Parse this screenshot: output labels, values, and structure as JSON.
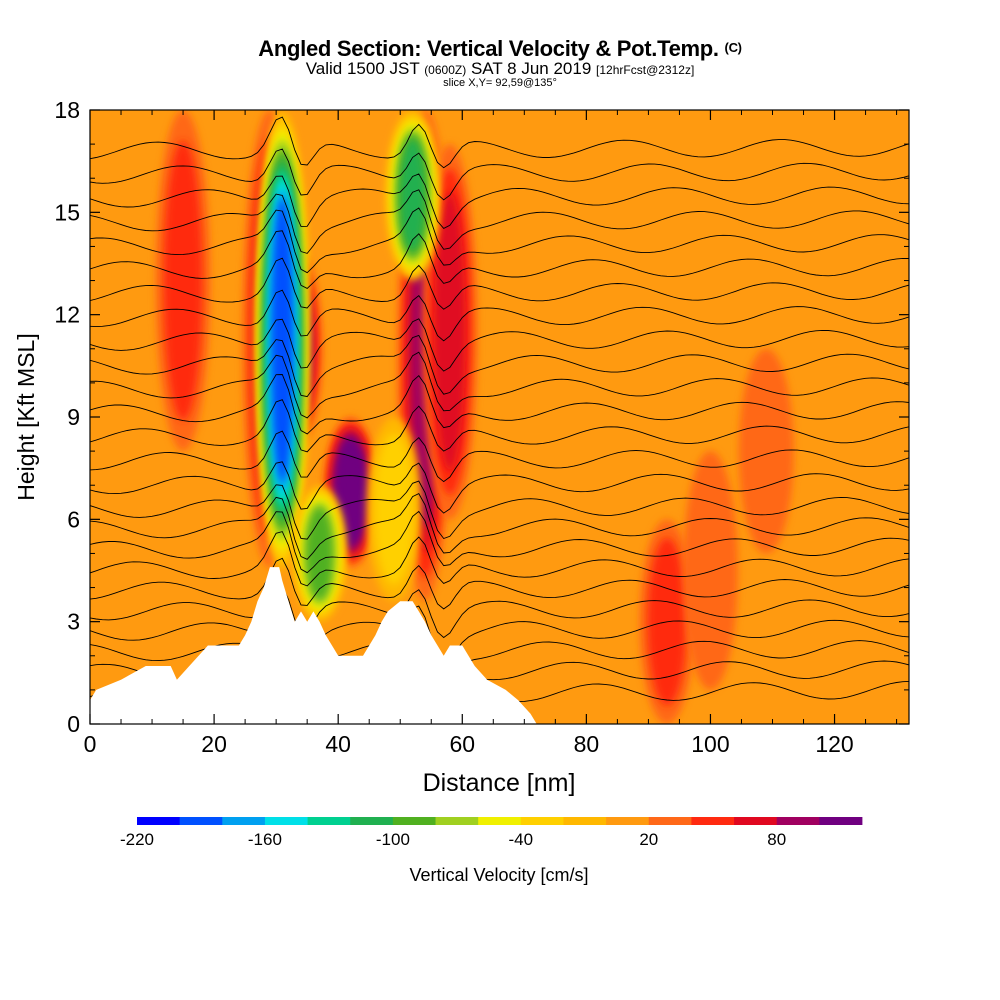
{
  "header": {
    "title_main": "Angled Section: Vertical Velocity & Pot.Temp.",
    "title_unit": "(C)",
    "valid_a": "Valid 1500 JST",
    "valid_b": "(0600Z)",
    "valid_c": "SAT 8 Jun 2019",
    "valid_d": "[12hrFcst@2312z]",
    "slice": "slice X,Y= 92,59@135°"
  },
  "chart_data": {
    "type": "heatmap",
    "xlabel": "Distance [nm]",
    "ylabel": "Height [Kft MSL]",
    "xlim": [
      0,
      132
    ],
    "ylim": [
      0,
      18
    ],
    "x_ticks": [
      0,
      20,
      40,
      60,
      80,
      100,
      120
    ],
    "y_ticks": [
      0,
      3,
      6,
      9,
      12,
      15,
      18
    ],
    "background_value_cm_s": 10,
    "colorbar": {
      "label": "Vertical Velocity [cm/s]",
      "tick_labels": [
        "-220",
        "-160",
        "-100",
        "-40",
        "20",
        "80"
      ],
      "tick_values": [
        -220,
        -160,
        -100,
        -40,
        20,
        80
      ],
      "levels": [
        -220,
        -200,
        -180,
        -160,
        -140,
        -120,
        -100,
        -80,
        -60,
        -40,
        -20,
        0,
        20,
        40,
        60,
        80,
        100,
        120
      ],
      "colors": [
        "#0000ff",
        "#0050ff",
        "#00a0f0",
        "#00e0e8",
        "#00d090",
        "#20b050",
        "#50b020",
        "#a0d020",
        "#f0f000",
        "#ffd000",
        "#ffb800",
        "#ff9a10",
        "#ff6818",
        "#ff2a10",
        "#e00820",
        "#a00060",
        "#700080"
      ]
    },
    "terrain_kft": [
      [
        0,
        0.7
      ],
      [
        1,
        1.0
      ],
      [
        5,
        1.3
      ],
      [
        9,
        1.7
      ],
      [
        13,
        1.7
      ],
      [
        14,
        1.3
      ],
      [
        16,
        1.7
      ],
      [
        19,
        2.3
      ],
      [
        24,
        2.3
      ],
      [
        25,
        2.6
      ],
      [
        26,
        3.0
      ],
      [
        27,
        3.6
      ],
      [
        28,
        4.0
      ],
      [
        29,
        4.6
      ],
      [
        30.5,
        4.6
      ],
      [
        31,
        4.2
      ],
      [
        32,
        3.6
      ],
      [
        33,
        3.0
      ],
      [
        34,
        3.3
      ],
      [
        35,
        3.0
      ],
      [
        36,
        3.3
      ],
      [
        37,
        3.0
      ],
      [
        38,
        2.6
      ],
      [
        39,
        2.3
      ],
      [
        40,
        2.0
      ],
      [
        44,
        2.0
      ],
      [
        45,
        2.3
      ],
      [
        46,
        2.6
      ],
      [
        47,
        3.0
      ],
      [
        48,
        3.3
      ],
      [
        50,
        3.6
      ],
      [
        52,
        3.6
      ],
      [
        53,
        3.3
      ],
      [
        54,
        3.0
      ],
      [
        55,
        2.6
      ],
      [
        56,
        2.3
      ],
      [
        57,
        2.0
      ],
      [
        58,
        2.3
      ],
      [
        60,
        2.3
      ],
      [
        61,
        2.0
      ],
      [
        62,
        1.7
      ],
      [
        64,
        1.3
      ],
      [
        67,
        1.0
      ],
      [
        69,
        0.7
      ],
      [
        71,
        0.3
      ],
      [
        72,
        0
      ],
      [
        132,
        0
      ]
    ],
    "updrafts_cm_s": [
      {
        "x": 15,
        "y_bot": 8,
        "y_top": 18,
        "peak": 40
      },
      {
        "x": 29,
        "y_bot": 4.6,
        "y_top": 18,
        "peak": 60
      },
      {
        "x": 33,
        "y_bot": 8,
        "y_top": 14,
        "peak": 100
      },
      {
        "x": 42,
        "y_bot": 4.6,
        "y_top": 9,
        "peak": 120
      },
      {
        "x": 54,
        "y_bot": 3.6,
        "y_top": 18,
        "peak": 80
      },
      {
        "x": 58,
        "y_bot": 6,
        "y_top": 17,
        "peak": 60
      },
      {
        "x": 93,
        "y_bot": 0,
        "y_top": 6,
        "peak": 40
      },
      {
        "x": 100,
        "y_bot": 1,
        "y_top": 8,
        "peak": 30
      },
      {
        "x": 109,
        "y_bot": 5,
        "y_top": 11,
        "peak": 30
      }
    ],
    "downdrafts_cm_s": [
      {
        "x": 31,
        "y_bot": 4.5,
        "y_top": 18,
        "peak": -200
      },
      {
        "x": 37,
        "y_bot": 3,
        "y_top": 7,
        "peak": -100
      },
      {
        "x": 52,
        "y_bot": 13,
        "y_top": 18,
        "peak": -120
      },
      {
        "x": 49,
        "y_bot": 3.6,
        "y_top": 9,
        "peak": -40
      }
    ],
    "pot_temp_contours": {
      "levels_c": [
        26,
        28,
        30,
        32,
        34,
        36,
        38,
        40,
        42,
        44,
        46,
        48,
        50,
        52,
        54,
        56,
        58,
        60,
        62,
        64,
        66,
        68,
        70,
        72,
        74
      ],
      "left_heights_kft": [
        0.8,
        1.5,
        2.1,
        2.7,
        3.3,
        3.9,
        4.5,
        5.1,
        5.7,
        6.3,
        7.0,
        7.7,
        8.4,
        9.1,
        9.8,
        10.5,
        11.2,
        11.9,
        12.6,
        13.3,
        14.0,
        14.7,
        15.4,
        16.1,
        16.8
      ],
      "right_heights_kft": [
        1.0,
        1.6,
        2.2,
        2.8,
        3.4,
        4.0,
        4.6,
        5.2,
        5.8,
        6.4,
        7.1,
        7.8,
        8.5,
        9.2,
        9.9,
        10.6,
        11.3,
        12.0,
        12.7,
        13.4,
        14.1,
        14.8,
        15.5,
        16.2,
        16.9
      ]
    }
  }
}
